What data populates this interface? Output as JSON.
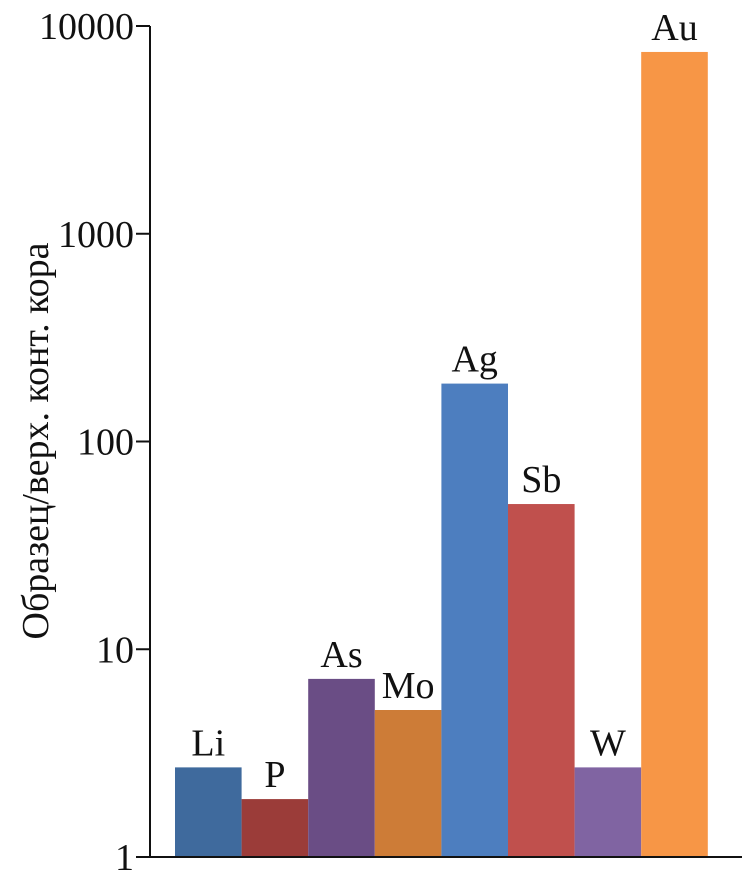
{
  "chart_data": {
    "type": "bar",
    "ylabel": "Образец/верх. конт. кора",
    "yscale": "log",
    "ylim": [
      1,
      10000
    ],
    "yticks": [
      "1",
      "10",
      "100",
      "1000",
      "10000"
    ],
    "grid": false,
    "categories": [
      "Li",
      "P",
      "As",
      "Mo",
      "Ag",
      "Sb",
      "W",
      "Au"
    ],
    "values": [
      2.7,
      1.9,
      7.2,
      5.1,
      190,
      50,
      2.7,
      7500
    ],
    "colors": [
      "#3f6a9d",
      "#9b3c39",
      "#6a4d85",
      "#cd7c37",
      "#4d7ebf",
      "#c0504d",
      "#8064a2",
      "#f79646"
    ]
  }
}
